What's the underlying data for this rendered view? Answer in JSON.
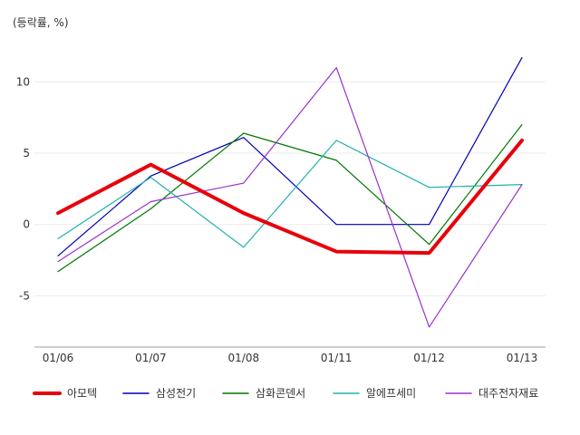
{
  "chart_data": {
    "type": "line",
    "unit_label": "(등락률, %)",
    "categories": [
      "01/06",
      "01/07",
      "01/08",
      "01/11",
      "01/12",
      "01/13"
    ],
    "y_ticks": [
      10,
      5,
      0,
      -5
    ],
    "ylim": [
      -8.6,
      13.2
    ],
    "grid": true,
    "legend_position": "bottom",
    "series": [
      {
        "name": "아모텍",
        "color": "#e8000b",
        "width": 4,
        "values": [
          0.8,
          4.2,
          0.8,
          -1.9,
          -2.0,
          5.9
        ]
      },
      {
        "name": "삼성전기",
        "color": "#0000b4",
        "width": 1.2,
        "values": [
          -2.2,
          3.4,
          6.1,
          0.0,
          0.0,
          11.7
        ]
      },
      {
        "name": "삼화콘덴서",
        "color": "#007800",
        "width": 1.2,
        "values": [
          -3.3,
          1.1,
          6.4,
          4.5,
          -1.4,
          7.0
        ]
      },
      {
        "name": "알에프세미",
        "color": "#20b2aa",
        "width": 1.2,
        "values": [
          -1.0,
          3.3,
          -1.6,
          5.9,
          2.6,
          2.8
        ]
      },
      {
        "name": "대주전자재료",
        "color": "#9932cc",
        "width": 1.2,
        "values": [
          -2.6,
          1.6,
          2.9,
          11.0,
          -7.2,
          2.8
        ]
      }
    ]
  }
}
